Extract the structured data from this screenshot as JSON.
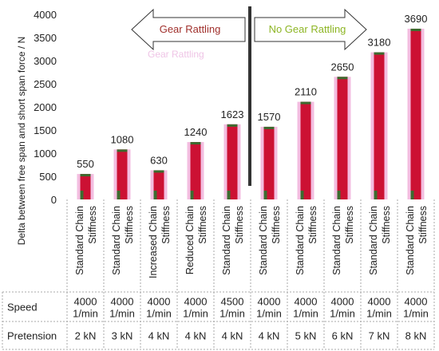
{
  "chart_data": {
    "type": "bar",
    "ylabel": "Delta between free span and short span force / N",
    "ylim": [
      0,
      4000
    ],
    "yticks": [
      0,
      500,
      1000,
      1500,
      2000,
      2500,
      3000,
      3500,
      4000
    ],
    "categories": [
      "Standard Chain Stiffness",
      "Standard Chain Stiffness",
      "Increased Chain Stiffness",
      "Reduced Chain Stiffness",
      "Standard Chain Stiffness",
      "Standard Chain Stiffness",
      "Standard Chain Stiffness",
      "Standard Chain Stiffness",
      "Standard Chain Stiffness",
      "Standard Chain Stiffness"
    ],
    "values": [
      550,
      1080,
      630,
      1240,
      1623,
      1570,
      2110,
      2650,
      3180,
      3690
    ],
    "data_labels": [
      "550",
      "1080",
      "630",
      "1240",
      "1623",
      "1570",
      "2110",
      "2650",
      "3180",
      "3690"
    ],
    "annotations": {
      "left_arrow": "Gear Rattling",
      "right_arrow": "No Gear Rattling",
      "ghost_text": "Gear Rattling"
    },
    "table": {
      "rows": [
        {
          "label": "Speed",
          "cells": [
            "4000\n1/min",
            "4000\n1/min",
            "4000\n1/min",
            "4000\n1/min",
            "4500\n1/min",
            "4000\n1/min",
            "4000\n1/min",
            "4000\n1/min",
            "4000\n1/min",
            "4000\n1/min"
          ]
        },
        {
          "label": "Pretension",
          "cells": [
            "2 kN",
            "3 kN",
            "4 kN",
            "4 kN",
            "4 kN",
            "4 kN",
            "5 kN",
            "6 kN",
            "7 kN",
            "8 kN"
          ]
        }
      ]
    },
    "colors": {
      "bar": "#cc1133",
      "bar_glow": "#f3bde0",
      "bar_mark": "#3d6b2f",
      "left_arrow_text": "#a0302c",
      "right_arrow_text": "#8db524",
      "divider": "#333333"
    },
    "grid": false
  }
}
